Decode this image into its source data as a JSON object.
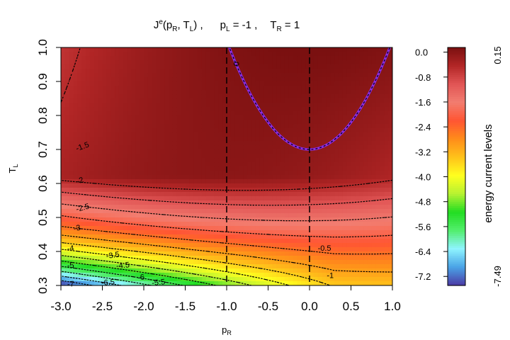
{
  "chart_data": {
    "type": "heatmap",
    "title": {
      "main": "J",
      "main_sup": "e",
      "args_open": "(p",
      "args_sub1": "R",
      "args_mid": ", T",
      "args_sub2": "L",
      "args_close": ") ,",
      "param1": "p",
      "param1_sub": "L",
      "param1_val": " = -1 ,",
      "param2": "T",
      "param2_sub": "R",
      "param2_val": " = 1"
    },
    "xlabel": {
      "base": "p",
      "sub": "R"
    },
    "ylabel": {
      "base": "T",
      "sub": "L"
    },
    "xlim": [
      -3.0,
      1.0
    ],
    "ylim": [
      0.3,
      1.0
    ],
    "x_ticks": [
      -3.0,
      -2.5,
      -2.0,
      -1.5,
      -1.0,
      -0.5,
      0.0,
      0.5,
      1.0
    ],
    "x_tick_labels": [
      "-3.0",
      "-2.5",
      "-2.0",
      "-1.5",
      "-1.0",
      "-0.5",
      "0.0",
      "0.5",
      "1.0"
    ],
    "y_ticks": [
      0.3,
      0.4,
      0.5,
      0.6,
      0.7,
      0.8,
      0.9,
      1.0
    ],
    "y_tick_labels": [
      "0.3",
      "0.4",
      "0.5",
      "0.6",
      "0.7",
      "0.8",
      "0.9",
      "1.0"
    ],
    "colorbar": {
      "label": "energy current levels",
      "min": -7.49,
      "max": 0.15,
      "min_label": "-7.49",
      "max_label": "0.15",
      "min_color": "#00007f",
      "max_color": "#8b0000",
      "ticks": [
        0.0,
        -0.8,
        -1.6,
        -2.4,
        -3.2,
        -4.0,
        -4.8,
        -5.6,
        -6.4,
        -7.2
      ],
      "tick_labels": [
        "0.0",
        "-0.8",
        "-1.6",
        "-2.4",
        "-3.2",
        "-4.0",
        "-4.8",
        "-5.6",
        "-6.4",
        "-7.2"
      ],
      "colors": [
        "#4b3aa6",
        "#4aa3e6",
        "#8ff4ff",
        "#52ee6c",
        "#22dd22",
        "#b7f232",
        "#ffff1f",
        "#ffc21a",
        "#ff8c1a",
        "#ff5533",
        "#f27d70",
        "#e15555",
        "#b22626",
        "#7a1010"
      ]
    },
    "contour_levels": [
      -0.5,
      -1,
      -1.5,
      -2,
      -2.5,
      -3,
      -3.5,
      -4,
      -4.5,
      -5,
      -5.5,
      -6,
      -6.5,
      -7
    ],
    "contour_labels": [
      "0",
      "-0.5",
      "-1",
      "-1.5",
      "-2",
      "-2.5",
      "-3",
      "-3.5",
      "-4",
      "-4.5",
      "-5",
      "-5.5",
      "-6",
      "-6.5",
      "-7"
    ],
    "zero_contour": {
      "vertex_x": 0.0,
      "vertex_y": 0.7,
      "color": "#8a2be2"
    },
    "vertical_lines_x": [
      -1.0,
      0.0
    ]
  }
}
